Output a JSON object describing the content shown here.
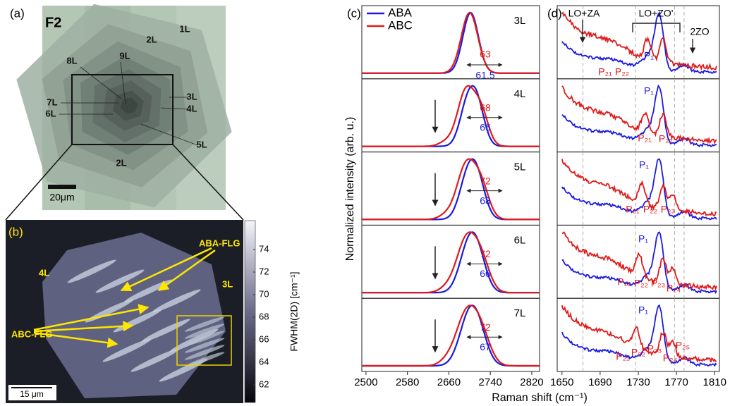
{
  "panel_a": {
    "label": "(a)",
    "sample": "F2",
    "layers": [
      "1L",
      "2L",
      "9L",
      "8L",
      "7L",
      "6L",
      "3L",
      "4L",
      "5L",
      "2L"
    ],
    "scale_bar": "20μm"
  },
  "panel_b": {
    "label": "(b)",
    "regions": [
      "4L",
      "3L"
    ],
    "stacking": [
      "ABA-FLG",
      "ABC-FLG"
    ],
    "scale_bar": "15 μm",
    "colorbar_label": "FWHM(2D) [cm⁻¹]",
    "colorbar_ticks": [
      "62",
      "64",
      "66",
      "68",
      "70",
      "72",
      "74"
    ]
  },
  "panel_c": {
    "label": "(c)",
    "legend": [
      "ABA",
      "ABC"
    ],
    "rows": [
      {
        "layers": "3L",
        "fwhm_abc": "63",
        "fwhm_aba": "61.5"
      },
      {
        "layers": "4L",
        "fwhm_abc": "68",
        "fwhm_aba": "66"
      },
      {
        "layers": "5L",
        "fwhm_abc": "72",
        "fwhm_aba": "68"
      },
      {
        "layers": "6L",
        "fwhm_abc": "72",
        "fwhm_aba": "66"
      },
      {
        "layers": "7L",
        "fwhm_abc": "72",
        "fwhm_aba": "67"
      }
    ],
    "x_ticks": [
      "2500",
      "2580",
      "2660",
      "2740",
      "2820"
    ]
  },
  "panel_d": {
    "label": "(d)",
    "modes": [
      "LO+ZA",
      "LO+ZO'",
      "2ZO"
    ],
    "rows": [
      {
        "peaks_aba": [
          "P₁"
        ],
        "peaks_abc": [
          "P₂₁",
          "P₂₂"
        ]
      },
      {
        "peaks_aba": [
          "P₁"
        ],
        "peaks_abc": [
          "P₂₁",
          "P₂₂"
        ]
      },
      {
        "peaks_aba": [
          "P₁"
        ],
        "peaks_abc": [
          "P₂₁",
          "P₂₂",
          "P₂₃"
        ]
      },
      {
        "peaks_aba": [
          "P₁"
        ],
        "peaks_abc": [
          "P₂₁",
          "P₂₂",
          "P₂₃",
          "P₂₄"
        ]
      },
      {
        "peaks_aba": [
          "P₁"
        ],
        "peaks_abc": [
          "P₂₁",
          "P₂₂",
          "P₂₃",
          "P₂₄",
          "P₂₅"
        ]
      }
    ],
    "x_ticks": [
      "1650",
      "1690",
      "1730",
      "1770",
      "1810"
    ]
  },
  "y_label": "Normalized intensity (arb. u.)",
  "x_label": "Raman shift (cm⁻¹)"
}
